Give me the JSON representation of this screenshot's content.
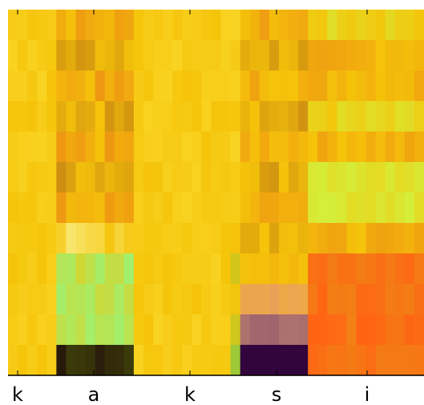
{
  "chart_data": {
    "type": "heatmap",
    "categories": [
      "k",
      "a",
      "k",
      "s",
      "i"
    ]
  }
}
